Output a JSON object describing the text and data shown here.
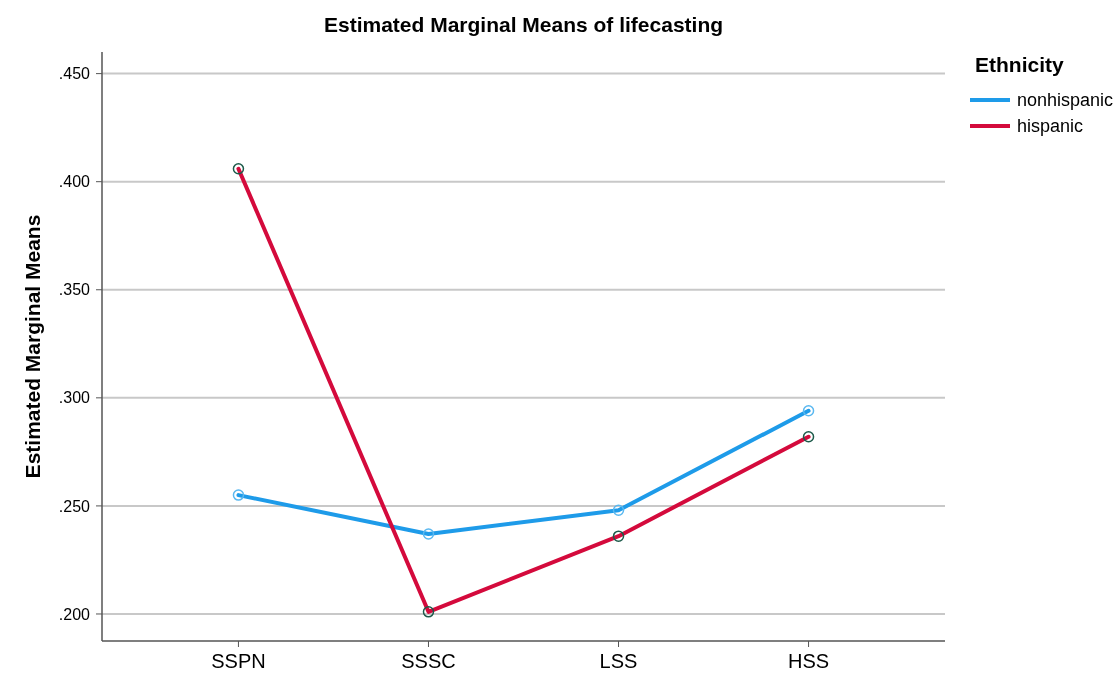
{
  "chart_data": {
    "type": "line",
    "title": "Estimated Marginal Means of lifecasting",
    "ylabel": "Estimated Marginal Means",
    "legend_title": "Ethnicity",
    "categories": [
      "SSPN",
      "SSSC",
      "LSS",
      "HSS"
    ],
    "series": [
      {
        "name": "nonhispanic",
        "color": "#1e9be9",
        "values": [
          0.255,
          0.237,
          0.248,
          0.294
        ]
      },
      {
        "name": "hispanic",
        "color": "#d40a3c",
        "values": [
          0.406,
          0.201,
          0.236,
          0.282
        ]
      }
    ],
    "ylim": [
      0.1875,
      0.46
    ],
    "yticks": [
      {
        "value": 0.2,
        "label": ".200"
      },
      {
        "value": 0.25,
        "label": ".250"
      },
      {
        "value": 0.3,
        "label": ".300"
      },
      {
        "value": 0.35,
        "label": ".350"
      },
      {
        "value": 0.4,
        "label": ".400"
      },
      {
        "value": 0.45,
        "label": ".450"
      }
    ],
    "grid": "y",
    "legend": "top right",
    "marker": "circle",
    "line_style": "solid"
  }
}
